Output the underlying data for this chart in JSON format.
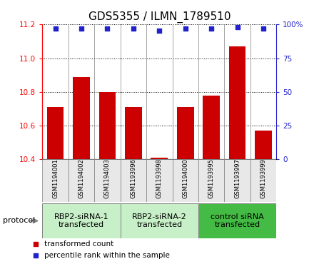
{
  "title": "GDS5355 / ILMN_1789510",
  "samples": [
    "GSM1194001",
    "GSM1194002",
    "GSM1194003",
    "GSM1193996",
    "GSM1193998",
    "GSM1194000",
    "GSM1193995",
    "GSM1193997",
    "GSM1193999"
  ],
  "bar_values": [
    10.71,
    10.89,
    10.8,
    10.71,
    10.41,
    10.71,
    10.78,
    11.07,
    10.57
  ],
  "percentile_y": [
    11.175,
    11.175,
    11.175,
    11.175,
    11.165,
    11.175,
    11.175,
    11.185,
    11.175
  ],
  "ylim": [
    10.4,
    11.2
  ],
  "yticks_left": [
    10.4,
    10.6,
    10.8,
    11.0,
    11.2
  ],
  "yticks_right": [
    0,
    25,
    50,
    75,
    100
  ],
  "bar_color": "#cc0000",
  "blue_color": "#2222cc",
  "groups": [
    {
      "label": "RBP2-siRNA-1\ntransfected",
      "start": 0,
      "end": 3,
      "color": "#c8f0c8"
    },
    {
      "label": "RBP2-siRNA-2\ntransfected",
      "start": 3,
      "end": 6,
      "color": "#c8f0c8"
    },
    {
      "label": "control siRNA\ntransfected",
      "start": 6,
      "end": 9,
      "color": "#44bb44"
    }
  ],
  "protocol_label": "protocol",
  "base_value": 10.4,
  "title_fontsize": 11,
  "tick_fontsize": 7.5,
  "sample_fontsize": 6.0,
  "group_fontsize": 8.0,
  "legend_fontsize": 7.5
}
